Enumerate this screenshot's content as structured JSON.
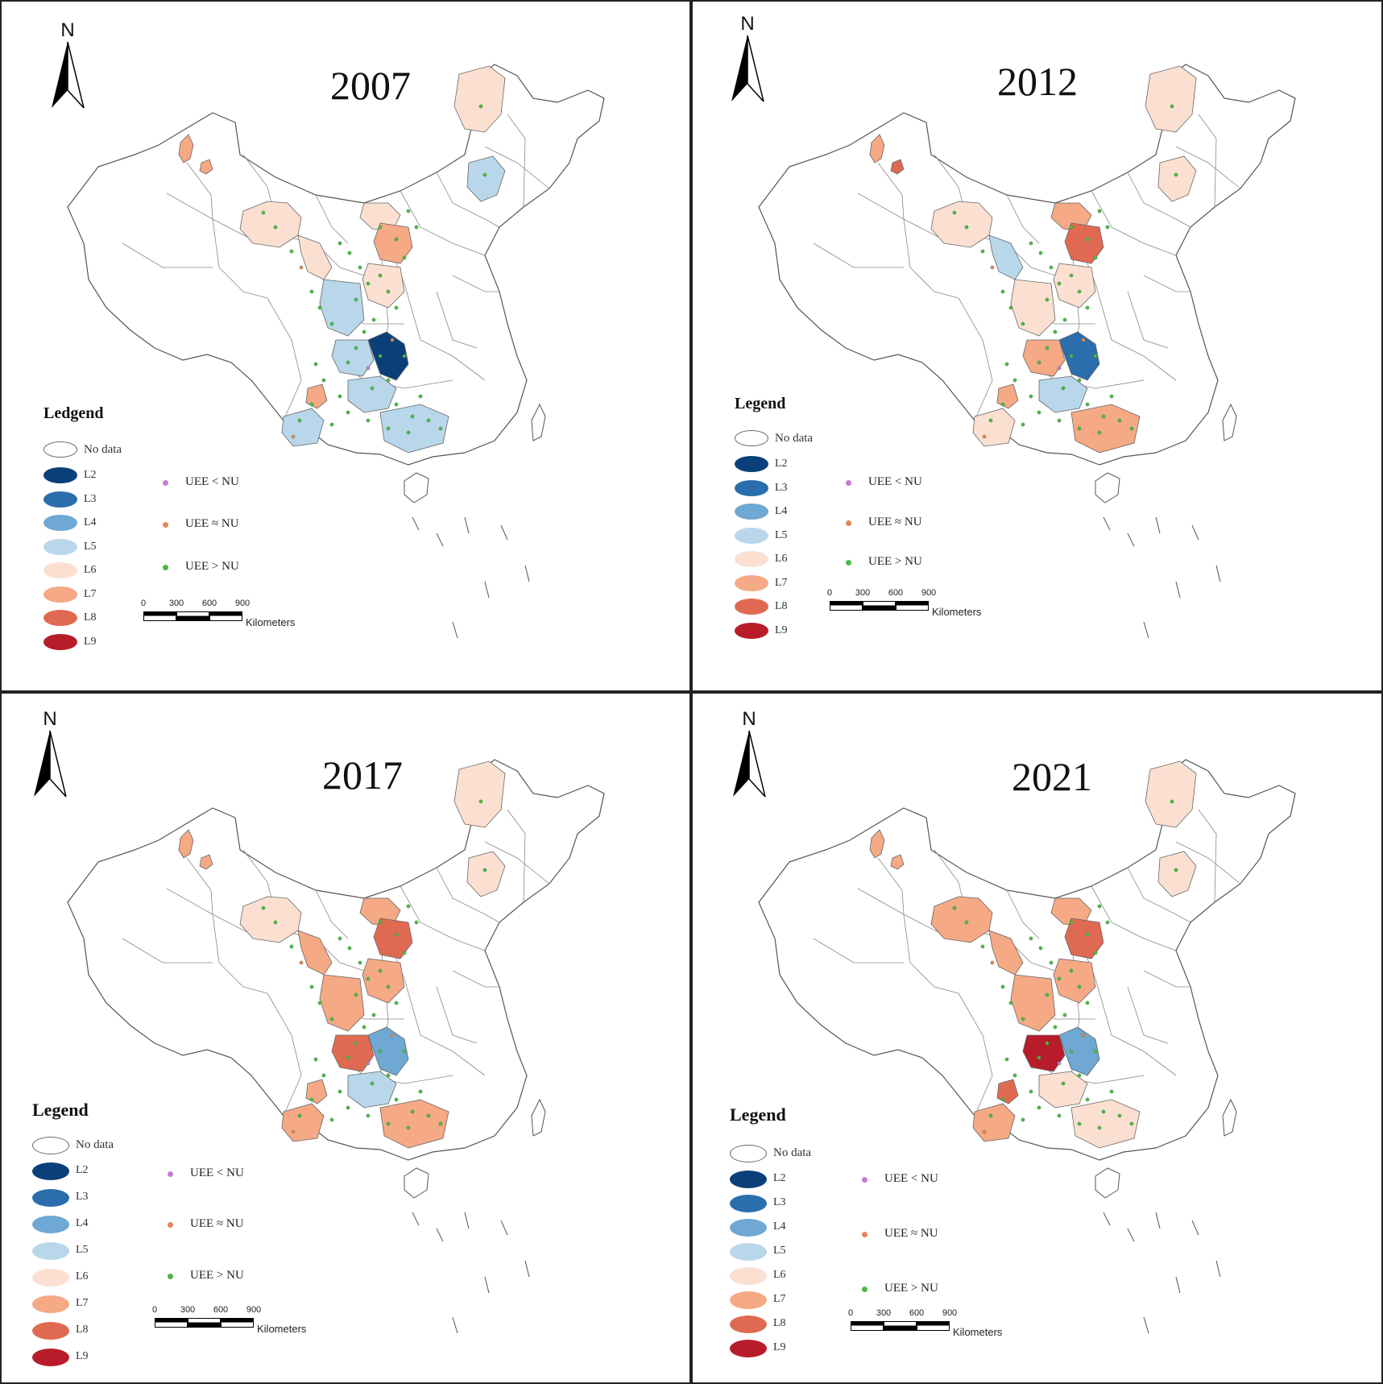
{
  "palette": {
    "No data": "#ffffff",
    "L2": "#0b3f79",
    "L3": "#2b6ead",
    "L4": "#6ea8d3",
    "L5": "#b9d7ea",
    "L6": "#fbe0d1",
    "L7": "#f5a985",
    "L8": "#e06a51",
    "L9": "#b81c2a"
  },
  "point_colors": {
    "UEE < NU": "#c27bd6",
    "UEE ≈ NU": "#e5845b",
    "UEE > NU": "#4cb849"
  },
  "north_label": "N",
  "scale_bar": {
    "ticks": [
      "0",
      "300",
      "600",
      "900"
    ],
    "unit": "Kilometers"
  },
  "legend_levels": [
    "L2",
    "L3",
    "L4",
    "L5",
    "L6",
    "L7",
    "L8",
    "L9"
  ],
  "no_data_label": "No data",
  "point_labels": [
    "UEE < NU",
    "UEE ≈ NU",
    "UEE > NU"
  ],
  "panels": [
    {
      "year": "2007",
      "legend_title": "Ledgend",
      "regions": {
        "xinjiang_north": "L7",
        "xinjiang_north2": "L7",
        "gansu_west": "L6",
        "ningxia": "L6",
        "inner_mongolia_c": "L6",
        "shaanxi_north": "L7",
        "shaanxi_c": "L6",
        "chongqing": "L2",
        "sichuan_e": "L5",
        "gansu_east": "L5",
        "guizhou": "L5",
        "yunnan_w": "L5",
        "guangxi": "L5",
        "heilongjiang_n": "L6",
        "jilin": "L5",
        "yunnan_sw": "L7"
      }
    },
    {
      "year": "2012",
      "legend_title": "Legend",
      "regions": {
        "xinjiang_north": "L7",
        "xinjiang_north2": "L8",
        "gansu_west": "L6",
        "ningxia": "L5",
        "inner_mongolia_c": "L7",
        "shaanxi_north": "L8",
        "shaanxi_c": "L6",
        "chongqing": "L3",
        "sichuan_e": "L7",
        "gansu_east": "L6",
        "guizhou": "L5",
        "yunnan_w": "L6",
        "guangxi": "L7",
        "heilongjiang_n": "L6",
        "jilin": "L6",
        "yunnan_sw": "L7"
      }
    },
    {
      "year": "2017",
      "legend_title": "Legend",
      "regions": {
        "xinjiang_north": "L7",
        "xinjiang_north2": "L7",
        "gansu_west": "L6",
        "ningxia": "L7",
        "inner_mongolia_c": "L7",
        "shaanxi_north": "L8",
        "shaanxi_c": "L7",
        "chongqing": "L4",
        "sichuan_e": "L8",
        "gansu_east": "L7",
        "guizhou": "L5",
        "yunnan_w": "L7",
        "guangxi": "L7",
        "heilongjiang_n": "L6",
        "jilin": "L6",
        "yunnan_sw": "L7"
      }
    },
    {
      "year": "2021",
      "legend_title": "Legend",
      "regions": {
        "xinjiang_north": "L7",
        "xinjiang_north2": "L7",
        "gansu_west": "L7",
        "ningxia": "L7",
        "inner_mongolia_c": "L7",
        "shaanxi_north": "L8",
        "shaanxi_c": "L7",
        "chongqing": "L4",
        "sichuan_e": "L9",
        "gansu_east": "L7",
        "guizhou": "L6",
        "yunnan_w": "L7",
        "guangxi": "L6",
        "heilongjiang_n": "L6",
        "jilin": "L6",
        "yunnan_sw": "L8"
      }
    }
  ]
}
